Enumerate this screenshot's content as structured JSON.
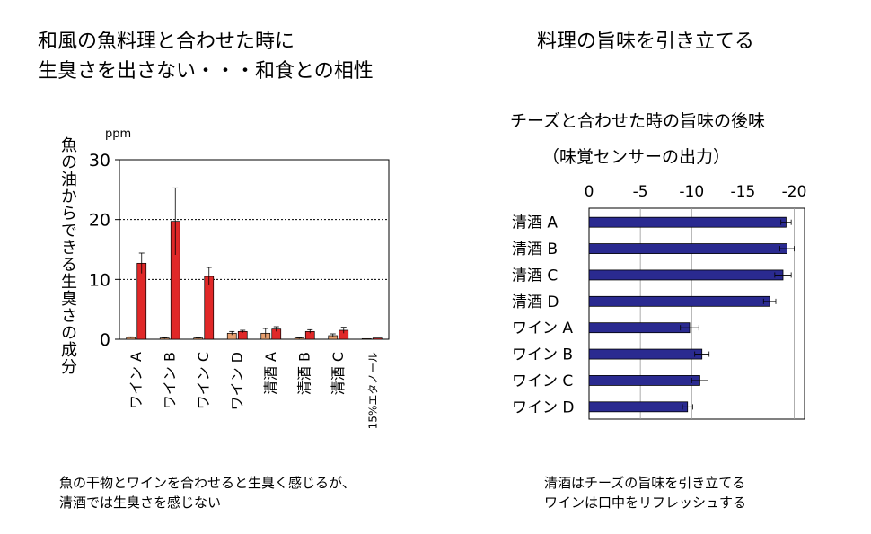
{
  "left": {
    "title_line1": "和風の魚料理と合わせた時に",
    "title_line2": "生臭さを出さない・・・和食との相性",
    "caption_line1": "魚の干物とワインを合わせると生臭く感じるが、",
    "caption_line2": "清酒では生臭さを感じない",
    "unit": "ppm"
  },
  "right": {
    "title": "料理の旨味を引き立てる",
    "caption_line1": "清酒はチーズの旨味を引き立てる",
    "caption_line2": "ワインは口中をリフレッシュする"
  },
  "chart_data": [
    {
      "type": "bar",
      "ylabel": "魚の油からできる生臭さの成分",
      "ylim": [
        0,
        30
      ],
      "yticks": [
        0,
        10,
        20,
        30
      ],
      "grid": true,
      "categories": [
        "ワイン A",
        "ワイン B",
        "ワイン C",
        "ワイン D",
        "清酒 A",
        "清酒 B",
        "清酒 C",
        "15%エタノール"
      ],
      "series": [
        {
          "values": [
            0.3,
            0.2,
            0.2,
            1.0,
            1.0,
            0.2,
            0.6,
            0.1
          ],
          "errors": [
            0.1,
            0.1,
            0.1,
            0.3,
            0.8,
            0.1,
            0.3,
            0.0
          ],
          "color": "#e8a070"
        },
        {
          "values": [
            12.7,
            19.7,
            10.5,
            1.3,
            1.7,
            1.3,
            1.5,
            0.2
          ],
          "errors": [
            1.7,
            5.6,
            1.5,
            0.2,
            0.4,
            0.3,
            0.5,
            0.0
          ],
          "color": "#e02828"
        }
      ]
    },
    {
      "type": "bar",
      "orientation": "horizontal",
      "title": "チーズと合わせた時の旨味の後味",
      "subtitle": "（味覚センサーの出力）",
      "categories": [
        "清酒 A",
        "清酒 B",
        "清酒 C",
        "清酒 D",
        "ワイン A",
        "ワイン B",
        "ワイン C",
        "ワイン D"
      ],
      "values": [
        -19.2,
        -19.3,
        -18.9,
        -17.6,
        -9.8,
        -11.0,
        -10.8,
        -9.6
      ],
      "errors": [
        0.5,
        0.7,
        0.8,
        0.6,
        0.9,
        0.7,
        0.8,
        0.5
      ],
      "xlim": [
        0,
        -21
      ],
      "xticks": [
        0,
        -5,
        -10,
        -15,
        -20
      ],
      "grid": true,
      "color": "#2a2a90"
    }
  ]
}
